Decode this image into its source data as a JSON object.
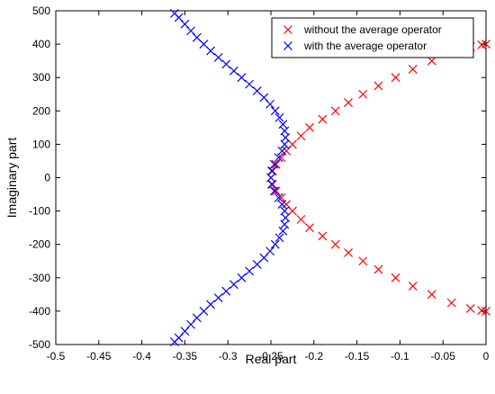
{
  "chart_data": {
    "type": "scatter",
    "xlabel": "Real part",
    "ylabel": "Imaginary part",
    "xlim": [
      -0.5,
      0
    ],
    "ylim": [
      -500,
      500
    ],
    "xticks": [
      -0.5,
      -0.45,
      -0.4,
      -0.35,
      -0.3,
      -0.25,
      -0.2,
      -0.15,
      -0.1,
      -0.05,
      0
    ],
    "xtick_labels": [
      "-0.5",
      "-0.45",
      "-0.4",
      "-0.35",
      "-0.3",
      "-0.25",
      "-0.2",
      "-0.15",
      "-0.1",
      "-0.05",
      "0"
    ],
    "yticks": [
      500,
      400,
      300,
      200,
      100,
      0,
      -100,
      -200,
      -300,
      -400,
      -500
    ],
    "ytick_labels": [
      "500",
      "400",
      "300",
      "200",
      "100",
      "0",
      "-100",
      "-200",
      "-300",
      "-400",
      "-500"
    ],
    "grid": false,
    "legend_position": "top-right",
    "marker": "x",
    "series": [
      {
        "name": "without the average operator",
        "color": "#ff0000",
        "points": [
          [
            -0.25,
            0
          ],
          [
            -0.248,
            20
          ],
          [
            -0.244,
            40
          ],
          [
            -0.238,
            60
          ],
          [
            -0.232,
            80
          ],
          [
            -0.225,
            100
          ],
          [
            -0.215,
            125
          ],
          [
            -0.205,
            150
          ],
          [
            -0.19,
            175
          ],
          [
            -0.175,
            200
          ],
          [
            -0.16,
            225
          ],
          [
            -0.143,
            250
          ],
          [
            -0.125,
            275
          ],
          [
            -0.105,
            300
          ],
          [
            -0.085,
            325
          ],
          [
            -0.063,
            350
          ],
          [
            -0.04,
            375
          ],
          [
            -0.018,
            392
          ],
          [
            -0.005,
            398
          ],
          [
            0.0,
            400
          ],
          [
            -0.248,
            -20
          ],
          [
            -0.244,
            -40
          ],
          [
            -0.238,
            -60
          ],
          [
            -0.232,
            -80
          ],
          [
            -0.225,
            -100
          ],
          [
            -0.215,
            -125
          ],
          [
            -0.205,
            -150
          ],
          [
            -0.19,
            -175
          ],
          [
            -0.175,
            -200
          ],
          [
            -0.16,
            -225
          ],
          [
            -0.143,
            -250
          ],
          [
            -0.125,
            -275
          ],
          [
            -0.105,
            -300
          ],
          [
            -0.085,
            -325
          ],
          [
            -0.063,
            -350
          ],
          [
            -0.04,
            -375
          ],
          [
            -0.018,
            -392
          ],
          [
            -0.005,
            -398
          ],
          [
            0.0,
            -400
          ]
        ]
      },
      {
        "name": "with the average operator",
        "color": "#0000ff",
        "points": [
          [
            -0.25,
            0
          ],
          [
            -0.249,
            20
          ],
          [
            -0.246,
            40
          ],
          [
            -0.241,
            60
          ],
          [
            -0.237,
            80
          ],
          [
            -0.234,
            100
          ],
          [
            -0.233,
            120
          ],
          [
            -0.234,
            140
          ],
          [
            -0.236,
            160
          ],
          [
            -0.24,
            180
          ],
          [
            -0.245,
            200
          ],
          [
            -0.251,
            220
          ],
          [
            -0.258,
            240
          ],
          [
            -0.266,
            260
          ],
          [
            -0.275,
            280
          ],
          [
            -0.284,
            300
          ],
          [
            -0.293,
            320
          ],
          [
            -0.302,
            340
          ],
          [
            -0.311,
            360
          ],
          [
            -0.32,
            380
          ],
          [
            -0.328,
            400
          ],
          [
            -0.336,
            420
          ],
          [
            -0.343,
            440
          ],
          [
            -0.35,
            460
          ],
          [
            -0.357,
            480
          ],
          [
            -0.362,
            492
          ],
          [
            -0.249,
            -20
          ],
          [
            -0.246,
            -40
          ],
          [
            -0.241,
            -60
          ],
          [
            -0.237,
            -80
          ],
          [
            -0.234,
            -100
          ],
          [
            -0.233,
            -120
          ],
          [
            -0.234,
            -140
          ],
          [
            -0.236,
            -160
          ],
          [
            -0.24,
            -180
          ],
          [
            -0.245,
            -200
          ],
          [
            -0.251,
            -220
          ],
          [
            -0.258,
            -240
          ],
          [
            -0.266,
            -260
          ],
          [
            -0.275,
            -280
          ],
          [
            -0.284,
            -300
          ],
          [
            -0.293,
            -320
          ],
          [
            -0.302,
            -340
          ],
          [
            -0.311,
            -360
          ],
          [
            -0.32,
            -380
          ],
          [
            -0.328,
            -400
          ],
          [
            -0.336,
            -420
          ],
          [
            -0.343,
            -440
          ],
          [
            -0.35,
            -460
          ],
          [
            -0.357,
            -480
          ],
          [
            -0.362,
            -492
          ]
        ]
      }
    ]
  }
}
